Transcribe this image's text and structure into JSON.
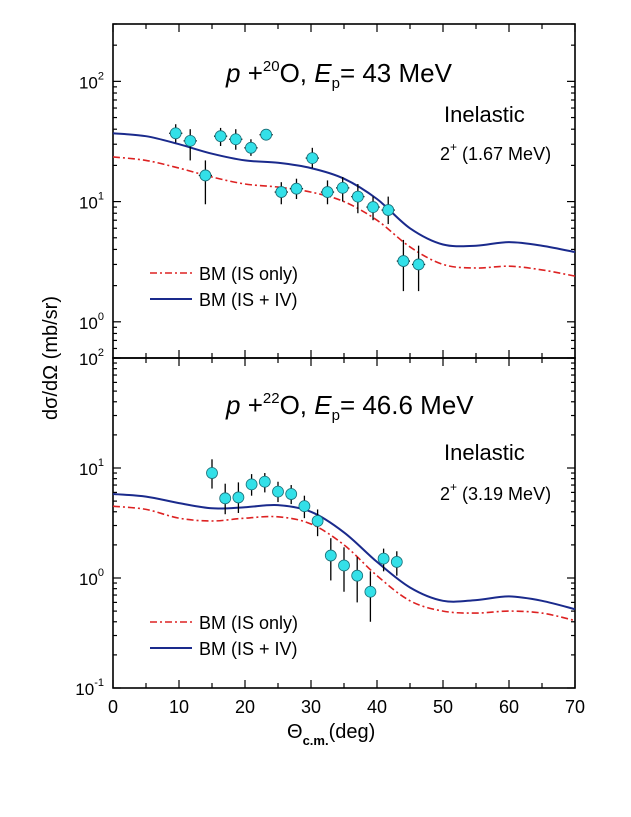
{
  "chart_data": [
    {
      "type": "scatter",
      "panel": "top",
      "title_parts": {
        "p": "p",
        "plus": " +",
        "mass": "20",
        "element": "O, ",
        "E": "E",
        "sub": "p",
        "energy": "= 43 MeV"
      },
      "annotation": "Inelastic",
      "state": {
        "sup": "+",
        "base": "2",
        "energy": " (1.67 MeV)"
      },
      "xlim": [
        0,
        70
      ],
      "ylim": [
        0.5,
        300
      ],
      "yscale": "log",
      "y_tick_labels": [
        {
          "base": "10",
          "exp": "0",
          "value": 1
        },
        {
          "base": "10",
          "exp": "1",
          "value": 10
        },
        {
          "base": "10",
          "exp": "2",
          "value": 100
        }
      ],
      "points": [
        {
          "x": 9.5,
          "y": 37,
          "yerr_lo": 31,
          "yerr_hi": 44,
          "xerr": 1.0
        },
        {
          "x": 11.7,
          "y": 32,
          "yerr_lo": 22,
          "yerr_hi": 40,
          "xerr": 1.0
        },
        {
          "x": 14.0,
          "y": 16.5,
          "yerr_lo": 9.5,
          "yerr_hi": 22,
          "xerr": 1.0
        },
        {
          "x": 16.3,
          "y": 35,
          "yerr_lo": 29,
          "yerr_hi": 41,
          "xerr": 1.0
        },
        {
          "x": 18.6,
          "y": 33,
          "yerr_lo": 27,
          "yerr_hi": 40,
          "xerr": 1.0
        },
        {
          "x": 20.9,
          "y": 28,
          "yerr_lo": 24,
          "yerr_hi": 33,
          "xerr": 1.0
        },
        {
          "x": 23.2,
          "y": 36,
          "yerr_lo": 33,
          "yerr_hi": 39,
          "xerr": 1.0
        },
        {
          "x": 25.5,
          "y": 12,
          "yerr_lo": 9.5,
          "yerr_hi": 14.5,
          "xerr": 1.0
        },
        {
          "x": 27.8,
          "y": 12.8,
          "yerr_lo": 10.5,
          "yerr_hi": 15.5,
          "xerr": 1.0
        },
        {
          "x": 30.2,
          "y": 23,
          "yerr_lo": 19,
          "yerr_hi": 28,
          "xerr": 1.0
        },
        {
          "x": 32.5,
          "y": 12,
          "yerr_lo": 9.5,
          "yerr_hi": 15,
          "xerr": 1.0
        },
        {
          "x": 34.8,
          "y": 13,
          "yerr_lo": 10,
          "yerr_hi": 16,
          "xerr": 1.0
        },
        {
          "x": 37.1,
          "y": 11,
          "yerr_lo": 8,
          "yerr_hi": 14,
          "xerr": 1.0
        },
        {
          "x": 39.4,
          "y": 9,
          "yerr_lo": 7,
          "yerr_hi": 11,
          "xerr": 1.0
        },
        {
          "x": 41.7,
          "y": 8.5,
          "yerr_lo": 6.5,
          "yerr_hi": 11,
          "xerr": 1.0
        },
        {
          "x": 44.0,
          "y": 3.2,
          "yerr_lo": 1.8,
          "yerr_hi": 4.8,
          "xerr": 1.0
        },
        {
          "x": 46.3,
          "y": 3.0,
          "yerr_lo": 1.8,
          "yerr_hi": 4.3,
          "xerr": 1.0
        }
      ],
      "series": [
        {
          "name": "BM (IS only)",
          "style": "dash-dot",
          "color": "#dd2222",
          "x": [
            0,
            5,
            10,
            15,
            20,
            25,
            30,
            35,
            40,
            45,
            50,
            55,
            60,
            65,
            70
          ],
          "values": [
            23.5,
            22,
            19,
            16,
            14,
            13.2,
            12,
            10,
            7,
            4.2,
            3,
            2.8,
            2.9,
            2.7,
            2.4
          ]
        },
        {
          "name": "BM (IS + IV)",
          "style": "solid",
          "color": "#1a2a8c",
          "x": [
            0,
            5,
            10,
            15,
            20,
            25,
            30,
            35,
            40,
            45,
            50,
            55,
            60,
            65,
            70
          ],
          "values": [
            37,
            35,
            30,
            25,
            22,
            21,
            19,
            15.5,
            10.5,
            6,
            4.4,
            4.3,
            4.6,
            4.3,
            3.8
          ]
        }
      ],
      "legend_position": "bottom-left"
    },
    {
      "type": "scatter",
      "panel": "bottom",
      "title_parts": {
        "p": "p",
        "plus": " +",
        "mass": "22",
        "element": "O, ",
        "E": "E",
        "sub": "p",
        "energy": "= 46.6 MeV"
      },
      "annotation": "Inelastic",
      "state": {
        "sup": "+",
        "base": "2",
        "energy": " (3.19 MeV)"
      },
      "xlim": [
        0,
        70
      ],
      "ylim": [
        0.1,
        100
      ],
      "yscale": "log",
      "y_tick_labels": [
        {
          "base": "10",
          "exp": "-1",
          "value": 0.1
        },
        {
          "base": "10",
          "exp": "0",
          "value": 1
        },
        {
          "base": "10",
          "exp": "1",
          "value": 10
        },
        {
          "base": "10",
          "exp": "2",
          "value": 100
        }
      ],
      "points": [
        {
          "x": 15.0,
          "y": 9.0,
          "yerr_lo": 6.5,
          "yerr_hi": 12,
          "xerr": 0
        },
        {
          "x": 17.0,
          "y": 5.3,
          "yerr_lo": 3.8,
          "yerr_hi": 7.2,
          "xerr": 0
        },
        {
          "x": 19.0,
          "y": 5.4,
          "yerr_lo": 3.9,
          "yerr_hi": 7.4,
          "xerr": 0
        },
        {
          "x": 21.0,
          "y": 7.1,
          "yerr_lo": 5.6,
          "yerr_hi": 8.8,
          "xerr": 0
        },
        {
          "x": 23.0,
          "y": 7.5,
          "yerr_lo": 6.0,
          "yerr_hi": 9.0,
          "xerr": 0
        },
        {
          "x": 25.0,
          "y": 6.1,
          "yerr_lo": 4.9,
          "yerr_hi": 7.5,
          "xerr": 0
        },
        {
          "x": 27.0,
          "y": 5.8,
          "yerr_lo": 4.7,
          "yerr_hi": 7.0,
          "xerr": 0
        },
        {
          "x": 29.0,
          "y": 4.5,
          "yerr_lo": 3.5,
          "yerr_hi": 5.6,
          "xerr": 0
        },
        {
          "x": 31.0,
          "y": 3.3,
          "yerr_lo": 2.4,
          "yerr_hi": 4.2,
          "xerr": 0
        },
        {
          "x": 33.0,
          "y": 1.6,
          "yerr_lo": 0.95,
          "yerr_hi": 2.3,
          "xerr": 0
        },
        {
          "x": 35.0,
          "y": 1.3,
          "yerr_lo": 0.75,
          "yerr_hi": 1.9,
          "xerr": 0
        },
        {
          "x": 37.0,
          "y": 1.05,
          "yerr_lo": 0.6,
          "yerr_hi": 1.55,
          "xerr": 0
        },
        {
          "x": 39.0,
          "y": 0.75,
          "yerr_lo": 0.4,
          "yerr_hi": 1.15,
          "xerr": 0
        },
        {
          "x": 41.0,
          "y": 1.5,
          "yerr_lo": 1.15,
          "yerr_hi": 1.85,
          "xerr": 0
        },
        {
          "x": 43.0,
          "y": 1.4,
          "yerr_lo": 1.05,
          "yerr_hi": 1.75,
          "xerr": 0
        }
      ],
      "series": [
        {
          "name": "BM (IS only)",
          "style": "dash-dot",
          "color": "#dd2222",
          "x": [
            0,
            5,
            10,
            15,
            20,
            25,
            30,
            35,
            40,
            45,
            50,
            55,
            60,
            65,
            70
          ],
          "values": [
            4.5,
            4.2,
            3.5,
            3.3,
            3.5,
            3.6,
            3.1,
            2.0,
            1.05,
            0.62,
            0.5,
            0.48,
            0.5,
            0.48,
            0.41
          ]
        },
        {
          "name": "BM (IS + IV)",
          "style": "solid",
          "color": "#1a2a8c",
          "x": [
            0,
            5,
            10,
            15,
            20,
            25,
            30,
            35,
            40,
            45,
            50,
            55,
            60,
            65,
            70
          ],
          "values": [
            5.8,
            5.5,
            4.8,
            4.3,
            4.4,
            4.6,
            4.0,
            2.6,
            1.4,
            0.82,
            0.62,
            0.63,
            0.68,
            0.62,
            0.52
          ]
        }
      ],
      "legend_position": "bottom-left"
    }
  ],
  "shared": {
    "xlabel_base": "Θ",
    "xlabel_sub": "c.m.",
    "xlabel_unit": "(deg)",
    "ylabel": "dσ/dΩ (mb/sr)",
    "x_tick_labels": [
      "0",
      "10",
      "20",
      "30",
      "40",
      "50",
      "60",
      "70"
    ],
    "marker_color": "#33e0e8"
  }
}
